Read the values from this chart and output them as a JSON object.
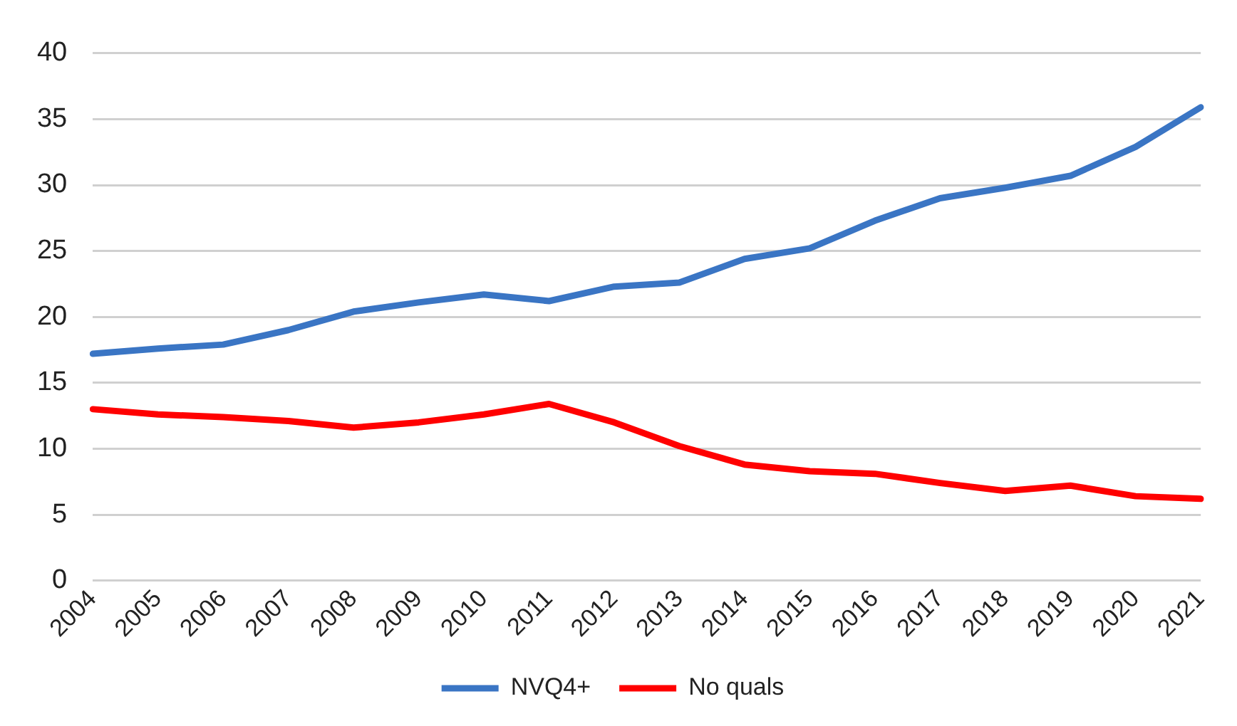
{
  "chart_data": {
    "type": "line",
    "categories": [
      "2004",
      "2005",
      "2006",
      "2007",
      "2008",
      "2009",
      "2010",
      "2011",
      "2012",
      "2013",
      "2014",
      "2015",
      "2016",
      "2017",
      "2018",
      "2019",
      "2020",
      "2021"
    ],
    "series": [
      {
        "name": "NVQ4+",
        "color": "#3a75c4",
        "values": [
          17.2,
          17.6,
          17.9,
          19.0,
          20.4,
          21.1,
          21.7,
          21.2,
          22.3,
          22.6,
          24.4,
          25.2,
          27.3,
          29.0,
          29.8,
          30.7,
          32.9,
          35.9
        ]
      },
      {
        "name": "No quals",
        "color": "#ff0000",
        "values": [
          13.0,
          12.6,
          12.4,
          12.1,
          11.6,
          12.0,
          12.6,
          13.4,
          12.0,
          10.2,
          8.8,
          8.3,
          8.1,
          7.4,
          6.8,
          7.2,
          6.4,
          6.2
        ]
      }
    ],
    "ylim": [
      0,
      40
    ],
    "yticks": [
      0,
      5,
      10,
      15,
      20,
      25,
      30,
      35,
      40
    ],
    "grid": "y",
    "legend": "bottom",
    "marker": "none",
    "line_style": "solid"
  }
}
